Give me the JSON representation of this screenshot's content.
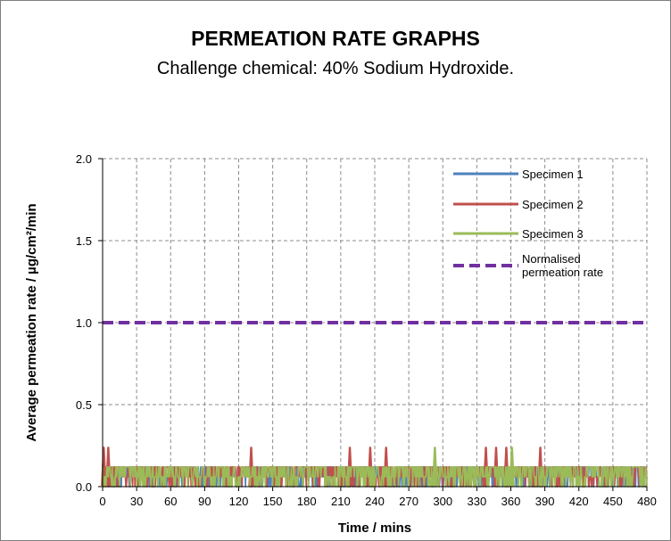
{
  "header": {
    "title": "PERMEATION RATE GRAPHS",
    "subtitle": "Challenge chemical: 40% Sodium Hydroxide."
  },
  "chart_data": {
    "type": "line",
    "title": "",
    "xlabel": "Time / mins",
    "ylabel": "Average permeation rate / µg/cm²/min",
    "xlim": [
      0,
      480
    ],
    "ylim": [
      0,
      2.0
    ],
    "xticks": [
      "0",
      "30",
      "60",
      "90",
      "120",
      "150",
      "180",
      "210",
      "240",
      "270",
      "300",
      "330",
      "360",
      "390",
      "420",
      "450",
      "480"
    ],
    "yticks": [
      "0.0",
      "0.5",
      "1.0",
      "1.5",
      "2.0"
    ],
    "grid": true,
    "legend_position": "top-right",
    "series": [
      {
        "name": "Specimen 1",
        "color": "#4f81bd",
        "style": "solid",
        "baseline": 0.0,
        "noise_peak": 0.12,
        "spikes": []
      },
      {
        "name": "Specimen 2",
        "color": "#c0504d",
        "style": "solid",
        "baseline": 0.0,
        "noise_peak": 0.12,
        "spikes": [
          {
            "x": 1,
            "y": 0.24
          },
          {
            "x": 5,
            "y": 0.24
          },
          {
            "x": 131,
            "y": 0.24
          },
          {
            "x": 218,
            "y": 0.24
          },
          {
            "x": 236,
            "y": 0.24
          },
          {
            "x": 250,
            "y": 0.24
          },
          {
            "x": 338,
            "y": 0.24
          },
          {
            "x": 347,
            "y": 0.24
          },
          {
            "x": 356,
            "y": 0.24
          },
          {
            "x": 386,
            "y": 0.24
          }
        ]
      },
      {
        "name": "Specimen 3",
        "color": "#9bbb59",
        "style": "solid",
        "baseline": 0.0,
        "noise_peak": 0.12,
        "spikes": [
          {
            "x": 293,
            "y": 0.24
          },
          {
            "x": 361,
            "y": 0.24
          }
        ]
      },
      {
        "name": "Normalised permeation rate",
        "legend_lines": [
          "Normalised",
          "permeation rate"
        ],
        "color": "#7030a0",
        "style": "dashed",
        "x": [
          0,
          480
        ],
        "values": [
          1.0,
          1.0
        ]
      }
    ]
  }
}
